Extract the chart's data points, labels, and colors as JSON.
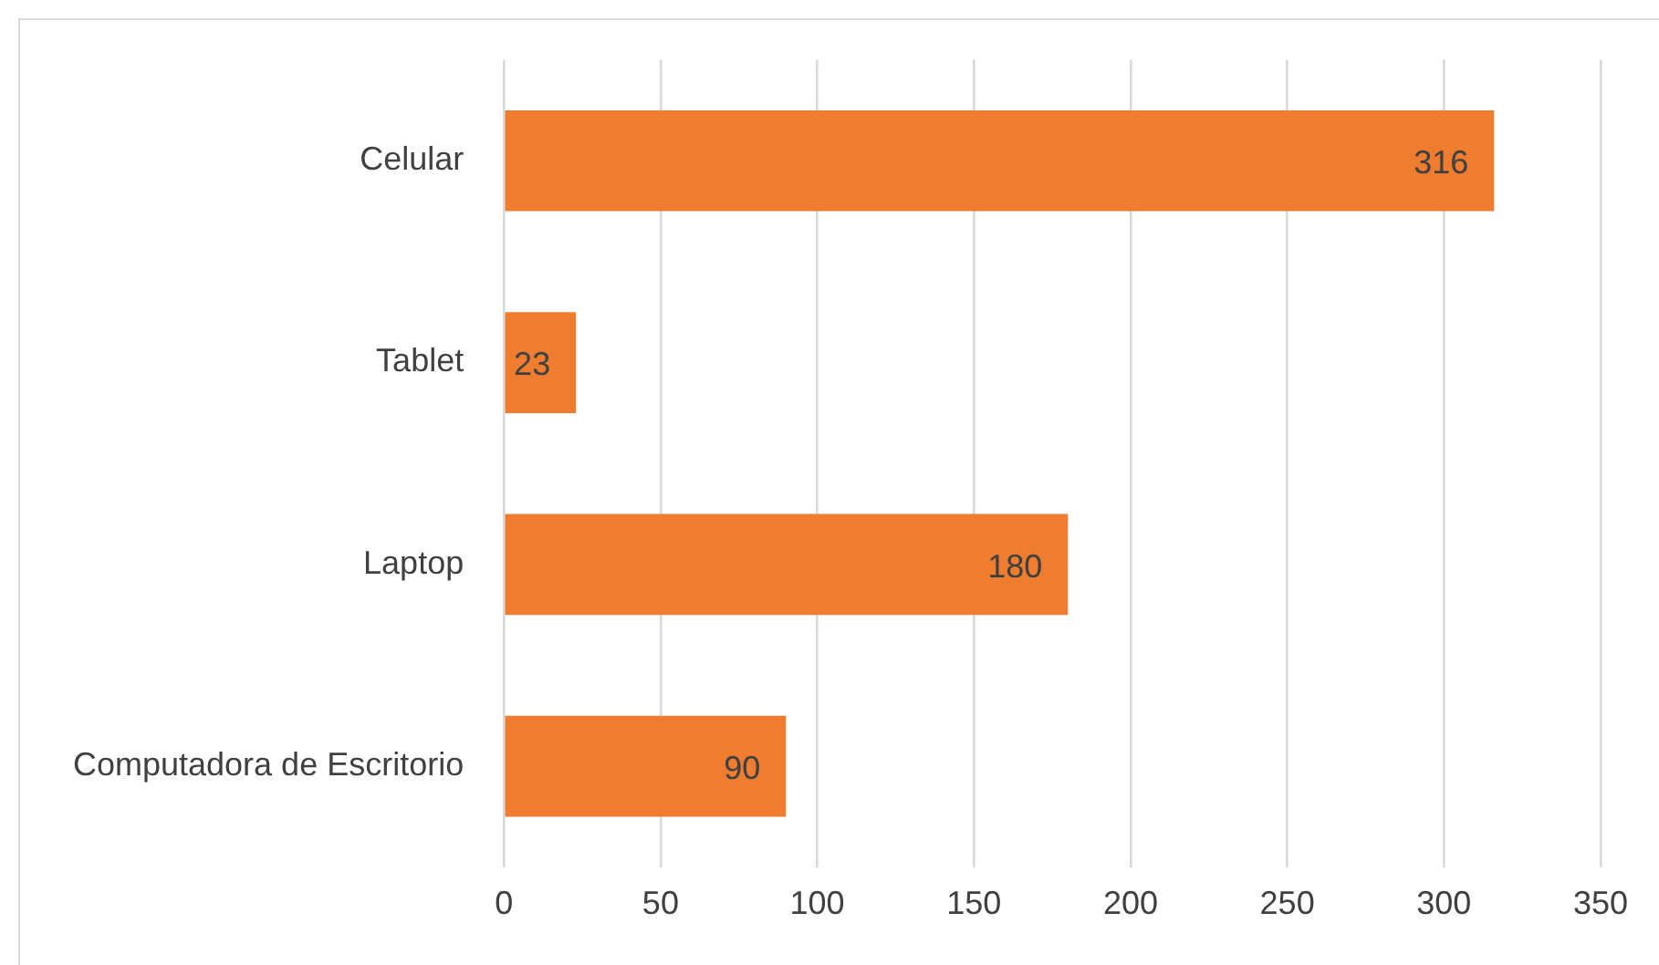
{
  "chart_data": {
    "type": "bar",
    "orientation": "horizontal",
    "categories": [
      "Celular",
      "Tablet",
      "Laptop",
      "Computadora de Escritorio"
    ],
    "values": [
      316,
      23,
      180,
      90
    ],
    "color": "#ef7d2f",
    "xlim": [
      0,
      350
    ],
    "xticks": [
      0,
      50,
      100,
      150,
      200,
      250,
      300,
      350
    ],
    "grid": "x",
    "data_labels": true,
    "legend": false
  }
}
